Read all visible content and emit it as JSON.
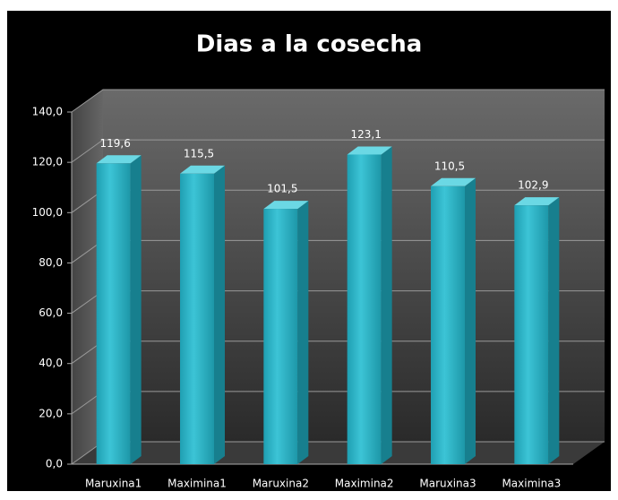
{
  "chart_data": {
    "type": "bar",
    "title": "Dias a la cosecha",
    "categories": [
      "Maruxina1",
      "Maximina1",
      "Maruxina2",
      "Maximina2",
      "Maruxina3",
      "Maximina3"
    ],
    "values": [
      119.6,
      115.5,
      101.5,
      123.1,
      110.5,
      102.9
    ],
    "value_labels": [
      "119,6",
      "115,5",
      "101,5",
      "123,1",
      "110,5",
      "102,9"
    ],
    "color": "#2bb5c8",
    "ylim": [
      0,
      140
    ],
    "yticks": [
      {
        "value": 0,
        "label": "0,0"
      },
      {
        "value": 20,
        "label": "20,0"
      },
      {
        "value": 40,
        "label": "40,0"
      },
      {
        "value": 60,
        "label": "60,0"
      },
      {
        "value": 80,
        "label": "80,0"
      },
      {
        "value": 100,
        "label": "100,0"
      },
      {
        "value": 120,
        "label": "120,0"
      },
      {
        "value": 140,
        "label": "140,0"
      }
    ],
    "grid": true
  }
}
